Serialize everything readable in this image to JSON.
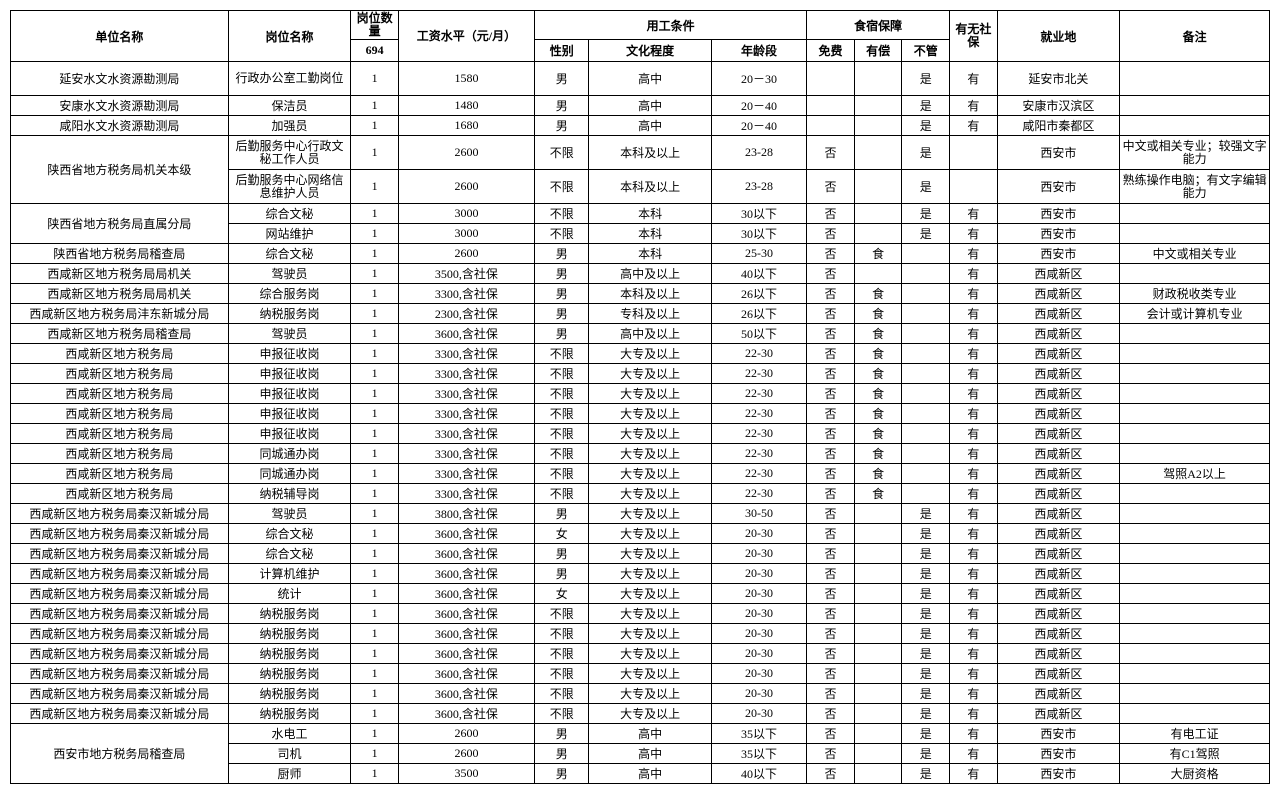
{
  "headers": {
    "unit": "单位名称",
    "post": "岗位名称",
    "qty": "岗位数量",
    "qty_total": "694",
    "salary": "工资水平（元/月）",
    "cond": "用工条件",
    "gender": "性别",
    "edu": "文化程度",
    "age": "年龄段",
    "board": "食宿保障",
    "free": "免费",
    "paid": "有偿",
    "none": "不管",
    "ins": "有无社保",
    "loc": "就业地",
    "note": "备注"
  },
  "rows": [
    {
      "unit": "延安水文水资源勘测局",
      "post": "行政办公室工勤岗位",
      "qty": "1",
      "salary": "1580",
      "gender": "男",
      "edu": "高中",
      "age": "20－30",
      "free": "",
      "paid": "",
      "none": "是",
      "ins": "有",
      "loc": "延安市北关",
      "note": "",
      "tall": true,
      "wrapPost": true
    },
    {
      "unit": "安康水文水资源勘测局",
      "post": "保洁员",
      "qty": "1",
      "salary": "1480",
      "gender": "男",
      "edu": "高中",
      "age": "20－40",
      "free": "",
      "paid": "",
      "none": "是",
      "ins": "有",
      "loc": "安康市汉滨区",
      "note": ""
    },
    {
      "unit": "咸阳水文水资源勘测局",
      "post": "加强员",
      "qty": "1",
      "salary": "1680",
      "gender": "男",
      "edu": "高中",
      "age": "20－40",
      "free": "",
      "paid": "",
      "none": "是",
      "ins": "有",
      "loc": "咸阳市秦都区",
      "note": ""
    },
    {
      "unit": "陕西省地方税务局机关本级",
      "unitRowspan": 2,
      "post": "后勤服务中心行政文秘工作人员",
      "qty": "1",
      "salary": "2600",
      "gender": "不限",
      "edu": "本科及以上",
      "age": "23-28",
      "free": "否",
      "paid": "",
      "none": "是",
      "ins": "",
      "loc": "西安市",
      "note": "中文或相关专业；较强文字能力",
      "tall": true,
      "wrapPost": true,
      "wrapNote": true
    },
    {
      "post": "后勤服务中心网络信息维护人员",
      "qty": "1",
      "salary": "2600",
      "gender": "不限",
      "edu": "本科及以上",
      "age": "23-28",
      "free": "否",
      "paid": "",
      "none": "是",
      "ins": "",
      "loc": "西安市",
      "note": "熟练操作电脑；有文字编辑能力",
      "tall": true,
      "wrapPost": true,
      "wrapNote": true
    },
    {
      "unit": "陕西省地方税务局直属分局",
      "unitRowspan": 2,
      "post": "综合文秘",
      "qty": "1",
      "salary": "3000",
      "gender": "不限",
      "edu": "本科",
      "age": "30以下",
      "free": "否",
      "paid": "",
      "none": "是",
      "ins": "有",
      "loc": "西安市",
      "note": ""
    },
    {
      "post": "网站维护",
      "qty": "1",
      "salary": "3000",
      "gender": "不限",
      "edu": "本科",
      "age": "30以下",
      "free": "否",
      "paid": "",
      "none": "是",
      "ins": "有",
      "loc": "西安市",
      "note": ""
    },
    {
      "unit": "陕西省地方税务局稽查局",
      "post": "综合文秘",
      "qty": "1",
      "salary": "2600",
      "gender": "男",
      "edu": "本科",
      "age": "25-30",
      "free": "否",
      "paid": "食",
      "none": "",
      "ins": "有",
      "loc": "西安市",
      "note": "中文或相关专业"
    },
    {
      "unit": "西咸新区地方税务局局机关",
      "post": "驾驶员",
      "qty": "1",
      "salary": "3500,含社保",
      "gender": "男",
      "edu": "高中及以上",
      "age": "40以下",
      "free": "否",
      "paid": "",
      "none": "",
      "ins": "有",
      "loc": "西咸新区",
      "note": ""
    },
    {
      "unit": "西咸新区地方税务局局机关",
      "post": "综合服务岗",
      "qty": "1",
      "salary": "3300,含社保",
      "gender": "男",
      "edu": "本科及以上",
      "age": "26以下",
      "free": "否",
      "paid": "食",
      "none": "",
      "ins": "有",
      "loc": "西咸新区",
      "note": "财政税收类专业"
    },
    {
      "unit": "西咸新区地方税务局沣东新城分局",
      "post": "纳税服务岗",
      "qty": "1",
      "salary": "2300,含社保",
      "gender": "男",
      "edu": "专科及以上",
      "age": "26以下",
      "free": "否",
      "paid": "食",
      "none": "",
      "ins": "有",
      "loc": "西咸新区",
      "note": "会计或计算机专业"
    },
    {
      "unit": "西咸新区地方税务局稽查局",
      "post": "驾驶员",
      "qty": "1",
      "salary": "3600,含社保",
      "gender": "男",
      "edu": "高中及以上",
      "age": "50以下",
      "free": "否",
      "paid": "食",
      "none": "",
      "ins": "有",
      "loc": "西咸新区",
      "note": ""
    },
    {
      "unit": "西咸新区地方税务局",
      "post": "申报征收岗",
      "qty": "1",
      "salary": "3300,含社保",
      "gender": "不限",
      "edu": "大专及以上",
      "age": "22-30",
      "free": "否",
      "paid": "食",
      "none": "",
      "ins": "有",
      "loc": "西咸新区",
      "note": ""
    },
    {
      "unit": "西咸新区地方税务局",
      "post": "申报征收岗",
      "qty": "1",
      "salary": "3300,含社保",
      "gender": "不限",
      "edu": "大专及以上",
      "age": "22-30",
      "free": "否",
      "paid": "食",
      "none": "",
      "ins": "有",
      "loc": "西咸新区",
      "note": ""
    },
    {
      "unit": "西咸新区地方税务局",
      "post": "申报征收岗",
      "qty": "1",
      "salary": "3300,含社保",
      "gender": "不限",
      "edu": "大专及以上",
      "age": "22-30",
      "free": "否",
      "paid": "食",
      "none": "",
      "ins": "有",
      "loc": "西咸新区",
      "note": ""
    },
    {
      "unit": "西咸新区地方税务局",
      "post": "申报征收岗",
      "qty": "1",
      "salary": "3300,含社保",
      "gender": "不限",
      "edu": "大专及以上",
      "age": "22-30",
      "free": "否",
      "paid": "食",
      "none": "",
      "ins": "有",
      "loc": "西咸新区",
      "note": ""
    },
    {
      "unit": "西咸新区地方税务局",
      "post": "申报征收岗",
      "qty": "1",
      "salary": "3300,含社保",
      "gender": "不限",
      "edu": "大专及以上",
      "age": "22-30",
      "free": "否",
      "paid": "食",
      "none": "",
      "ins": "有",
      "loc": "西咸新区",
      "note": ""
    },
    {
      "unit": "西咸新区地方税务局",
      "post": "同城通办岗",
      "qty": "1",
      "salary": "3300,含社保",
      "gender": "不限",
      "edu": "大专及以上",
      "age": "22-30",
      "free": "否",
      "paid": "食",
      "none": "",
      "ins": "有",
      "loc": "西咸新区",
      "note": ""
    },
    {
      "unit": "西咸新区地方税务局",
      "post": "同城通办岗",
      "qty": "1",
      "salary": "3300,含社保",
      "gender": "不限",
      "edu": "大专及以上",
      "age": "22-30",
      "free": "否",
      "paid": "食",
      "none": "",
      "ins": "有",
      "loc": "西咸新区",
      "note": "驾照A2以上"
    },
    {
      "unit": "西咸新区地方税务局",
      "post": "纳税辅导岗",
      "qty": "1",
      "salary": "3300,含社保",
      "gender": "不限",
      "edu": "大专及以上",
      "age": "22-30",
      "free": "否",
      "paid": "食",
      "none": "",
      "ins": "有",
      "loc": "西咸新区",
      "note": ""
    },
    {
      "unit": "西咸新区地方税务局秦汉新城分局",
      "post": "驾驶员",
      "qty": "1",
      "salary": "3800,含社保",
      "gender": "男",
      "edu": "大专及以上",
      "age": "30-50",
      "free": "否",
      "paid": "",
      "none": "是",
      "ins": "有",
      "loc": "西咸新区",
      "note": ""
    },
    {
      "unit": "西咸新区地方税务局秦汉新城分局",
      "post": "综合文秘",
      "qty": "1",
      "salary": "3600,含社保",
      "gender": "女",
      "edu": "大专及以上",
      "age": "20-30",
      "free": "否",
      "paid": "",
      "none": "是",
      "ins": "有",
      "loc": "西咸新区",
      "note": ""
    },
    {
      "unit": "西咸新区地方税务局秦汉新城分局",
      "post": "综合文秘",
      "qty": "1",
      "salary": "3600,含社保",
      "gender": "男",
      "edu": "大专及以上",
      "age": "20-30",
      "free": "否",
      "paid": "",
      "none": "是",
      "ins": "有",
      "loc": "西咸新区",
      "note": ""
    },
    {
      "unit": "西咸新区地方税务局秦汉新城分局",
      "post": "计算机维护",
      "qty": "1",
      "salary": "3600,含社保",
      "gender": "男",
      "edu": "大专及以上",
      "age": "20-30",
      "free": "否",
      "paid": "",
      "none": "是",
      "ins": "有",
      "loc": "西咸新区",
      "note": ""
    },
    {
      "unit": "西咸新区地方税务局秦汉新城分局",
      "post": "统计",
      "qty": "1",
      "salary": "3600,含社保",
      "gender": "女",
      "edu": "大专及以上",
      "age": "20-30",
      "free": "否",
      "paid": "",
      "none": "是",
      "ins": "有",
      "loc": "西咸新区",
      "note": ""
    },
    {
      "unit": "西咸新区地方税务局秦汉新城分局",
      "post": "纳税服务岗",
      "qty": "1",
      "salary": "3600,含社保",
      "gender": "不限",
      "edu": "大专及以上",
      "age": "20-30",
      "free": "否",
      "paid": "",
      "none": "是",
      "ins": "有",
      "loc": "西咸新区",
      "note": ""
    },
    {
      "unit": "西咸新区地方税务局秦汉新城分局",
      "post": "纳税服务岗",
      "qty": "1",
      "salary": "3600,含社保",
      "gender": "不限",
      "edu": "大专及以上",
      "age": "20-30",
      "free": "否",
      "paid": "",
      "none": "是",
      "ins": "有",
      "loc": "西咸新区",
      "note": ""
    },
    {
      "unit": "西咸新区地方税务局秦汉新城分局",
      "post": "纳税服务岗",
      "qty": "1",
      "salary": "3600,含社保",
      "gender": "不限",
      "edu": "大专及以上",
      "age": "20-30",
      "free": "否",
      "paid": "",
      "none": "是",
      "ins": "有",
      "loc": "西咸新区",
      "note": ""
    },
    {
      "unit": "西咸新区地方税务局秦汉新城分局",
      "post": "纳税服务岗",
      "qty": "1",
      "salary": "3600,含社保",
      "gender": "不限",
      "edu": "大专及以上",
      "age": "20-30",
      "free": "否",
      "paid": "",
      "none": "是",
      "ins": "有",
      "loc": "西咸新区",
      "note": ""
    },
    {
      "unit": "西咸新区地方税务局秦汉新城分局",
      "post": "纳税服务岗",
      "qty": "1",
      "salary": "3600,含社保",
      "gender": "不限",
      "edu": "大专及以上",
      "age": "20-30",
      "free": "否",
      "paid": "",
      "none": "是",
      "ins": "有",
      "loc": "西咸新区",
      "note": ""
    },
    {
      "unit": "西咸新区地方税务局秦汉新城分局",
      "post": "纳税服务岗",
      "qty": "1",
      "salary": "3600,含社保",
      "gender": "不限",
      "edu": "大专及以上",
      "age": "20-30",
      "free": "否",
      "paid": "",
      "none": "是",
      "ins": "有",
      "loc": "西咸新区",
      "note": ""
    },
    {
      "unit": "西安市地方税务局稽查局",
      "unitRowspan": 3,
      "post": "水电工",
      "qty": "1",
      "salary": "2600",
      "gender": "男",
      "edu": "高中",
      "age": "35以下",
      "free": "否",
      "paid": "",
      "none": "是",
      "ins": "有",
      "loc": "西安市",
      "note": "有电工证"
    },
    {
      "post": "司机",
      "qty": "1",
      "salary": "2600",
      "gender": "男",
      "edu": "高中",
      "age": "35以下",
      "free": "否",
      "paid": "",
      "none": "是",
      "ins": "有",
      "loc": "西安市",
      "note": "有C1驾照"
    },
    {
      "post": "厨师",
      "qty": "1",
      "salary": "3500",
      "gender": "男",
      "edu": "高中",
      "age": "40以下",
      "free": "否",
      "paid": "",
      "none": "是",
      "ins": "有",
      "loc": "西安市",
      "note": "大厨资格"
    }
  ]
}
